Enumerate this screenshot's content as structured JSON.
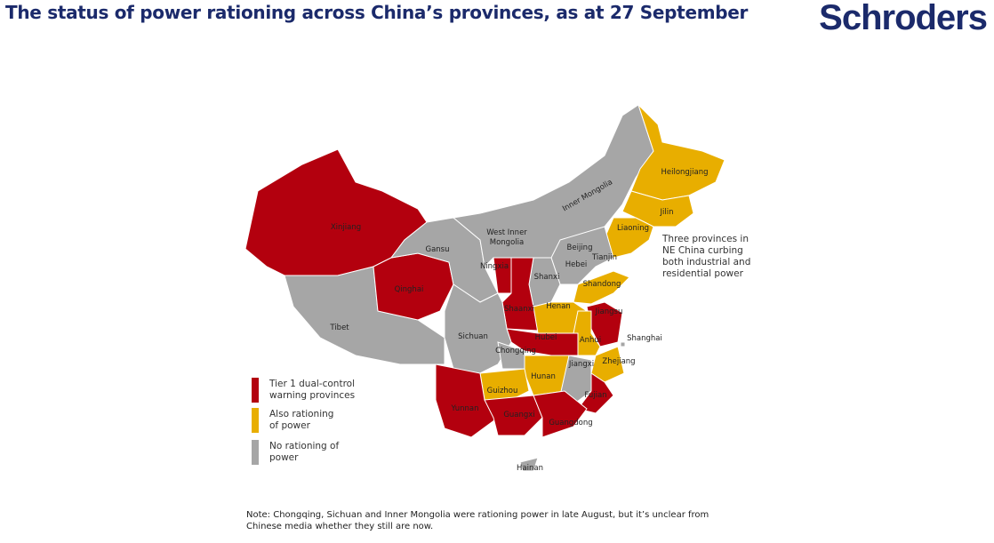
{
  "title": "The status of power rationing across China’s provinces, as at 27 September",
  "logo": "Schroders",
  "colors": {
    "tier1": "#B3000E",
    "rationing": "#E8AE00",
    "none": "#A6A6A6",
    "title": "#1B2A6B"
  },
  "legend": [
    {
      "status": "tier1",
      "label": "Tier 1 dual-control warning provinces"
    },
    {
      "status": "rationing",
      "label": "Also rationing of power"
    },
    {
      "status": "none",
      "label": "No rationing of power"
    }
  ],
  "annotation": "Three provinces in NE China curbing both industrial and residential power",
  "note": "Note: Chongqing, Sichuan and Inner Mongolia were rationing power in late August, but it’s unclear from Chinese media whether they still are now.",
  "provinces": [
    {
      "name": "Xinjiang",
      "status": "tier1"
    },
    {
      "name": "Tibet",
      "status": "none"
    },
    {
      "name": "Qinghai",
      "status": "tier1"
    },
    {
      "name": "Gansu",
      "status": "none"
    },
    {
      "name": "Inner Mongolia",
      "status": "none"
    },
    {
      "name": "West Inner Mongolia",
      "status": "none"
    },
    {
      "name": "Heilongjiang",
      "status": "rationing"
    },
    {
      "name": "Jilin",
      "status": "rationing"
    },
    {
      "name": "Liaoning",
      "status": "rationing"
    },
    {
      "name": "Beijing",
      "status": "none"
    },
    {
      "name": "Tianjin",
      "status": "none"
    },
    {
      "name": "Hebei",
      "status": "none"
    },
    {
      "name": "Shanxi",
      "status": "none"
    },
    {
      "name": "Ningxia",
      "status": "tier1"
    },
    {
      "name": "Shaanxi",
      "status": "tier1"
    },
    {
      "name": "Shandong",
      "status": "rationing"
    },
    {
      "name": "Henan",
      "status": "rationing"
    },
    {
      "name": "Jiangsu",
      "status": "tier1"
    },
    {
      "name": "Anhui",
      "status": "rationing"
    },
    {
      "name": "Shanghai",
      "status": "none"
    },
    {
      "name": "Hubei",
      "status": "tier1"
    },
    {
      "name": "Zhejiang",
      "status": "rationing"
    },
    {
      "name": "Sichuan",
      "status": "none"
    },
    {
      "name": "Chongqing",
      "status": "none"
    },
    {
      "name": "Hunan",
      "status": "rationing"
    },
    {
      "name": "Jiangxi",
      "status": "none"
    },
    {
      "name": "Fujian",
      "status": "tier1"
    },
    {
      "name": "Guizhou",
      "status": "rationing"
    },
    {
      "name": "Yunnan",
      "status": "tier1"
    },
    {
      "name": "Guangxi",
      "status": "tier1"
    },
    {
      "name": "Guangdong",
      "status": "tier1"
    },
    {
      "name": "Hainan",
      "status": "none"
    }
  ]
}
